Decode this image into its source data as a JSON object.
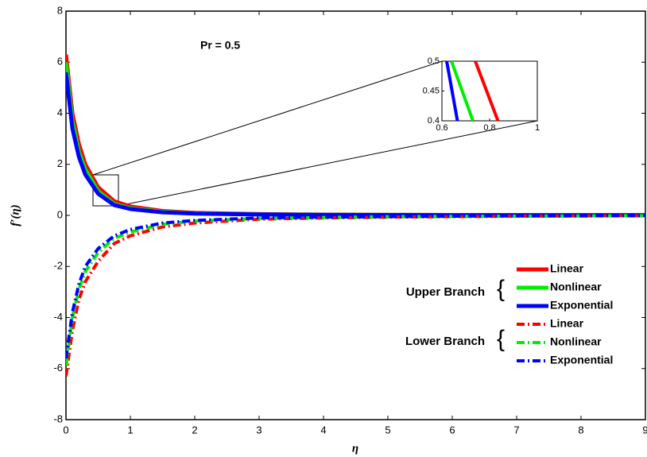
{
  "chart_data": {
    "type": "line",
    "xlabel": "η",
    "ylabel": "f′(η)",
    "annotation": "Pr = 0.5",
    "xlim": [
      0,
      9
    ],
    "ylim": [
      -8,
      8
    ],
    "xticks": [
      0,
      1,
      2,
      3,
      4,
      5,
      6,
      7,
      8,
      9
    ],
    "yticks": [
      -8,
      -6,
      -4,
      -2,
      0,
      2,
      4,
      6,
      8
    ],
    "legend_groups": [
      "Upper Branch",
      "Lower Branch"
    ],
    "x": [
      0,
      0.1,
      0.2,
      0.3,
      0.5,
      0.75,
      1,
      1.5,
      2,
      3,
      4,
      5,
      6,
      7,
      8,
      9
    ],
    "series": [
      {
        "name": "Linear",
        "color": "#ff0000",
        "style": "solid",
        "values": [
          6.3,
          4.0,
          2.8,
          2.0,
          1.1,
          0.55,
          0.35,
          0.17,
          0.1,
          0.05,
          0.03,
          0.02,
          0.015,
          0.01,
          0.01,
          0.01
        ]
      },
      {
        "name": "Nonlinear",
        "color": "#00ee00",
        "style": "solid",
        "values": [
          6.0,
          3.7,
          2.5,
          1.8,
          0.95,
          0.45,
          0.28,
          0.14,
          0.08,
          0.04,
          0.025,
          0.02,
          0.015,
          0.01,
          0.01,
          0.01
        ]
      },
      {
        "name": "Exponential",
        "color": "#0000ff",
        "style": "solid",
        "values": [
          5.6,
          3.4,
          2.3,
          1.6,
          0.85,
          0.4,
          0.25,
          0.12,
          0.07,
          0.035,
          0.02,
          0.015,
          0.01,
          0.01,
          0.01,
          0.01
        ]
      },
      {
        "name": "Linear",
        "color": "#ff0000",
        "style": "dashdot",
        "values": [
          -6.3,
          -4.5,
          -3.3,
          -2.6,
          -1.8,
          -1.1,
          -0.8,
          -0.45,
          -0.3,
          -0.15,
          -0.1,
          -0.07,
          -0.05,
          -0.03,
          -0.02,
          -0.01
        ]
      },
      {
        "name": "Nonlinear",
        "color": "#00ee00",
        "style": "dashdot",
        "values": [
          -5.9,
          -4.0,
          -2.9,
          -2.2,
          -1.45,
          -0.9,
          -0.65,
          -0.35,
          -0.22,
          -0.12,
          -0.08,
          -0.05,
          -0.04,
          -0.03,
          -0.02,
          -0.01
        ]
      },
      {
        "name": "Exponential",
        "color": "#0000ff",
        "style": "dashdot",
        "values": [
          -5.6,
          -3.8,
          -2.7,
          -2.0,
          -1.3,
          -0.8,
          -0.55,
          -0.3,
          -0.2,
          -0.1,
          -0.07,
          -0.05,
          -0.03,
          -0.02,
          -0.02,
          -0.01
        ]
      }
    ],
    "inset": {
      "xlim": [
        0.6,
        1
      ],
      "ylim": [
        0.4,
        0.5
      ],
      "xticks": [
        0.6,
        0.8,
        1
      ],
      "yticks": [
        0.4,
        0.45,
        0.5
      ],
      "series": [
        {
          "color": "#0000ff",
          "x": [
            0.62,
            0.665
          ],
          "values": [
            0.5,
            0.4
          ]
        },
        {
          "color": "#00ee00",
          "x": [
            0.64,
            0.73
          ],
          "values": [
            0.5,
            0.4
          ]
        },
        {
          "color": "#ff0000",
          "x": [
            0.74,
            0.835
          ],
          "values": [
            0.5,
            0.4
          ]
        }
      ]
    }
  }
}
